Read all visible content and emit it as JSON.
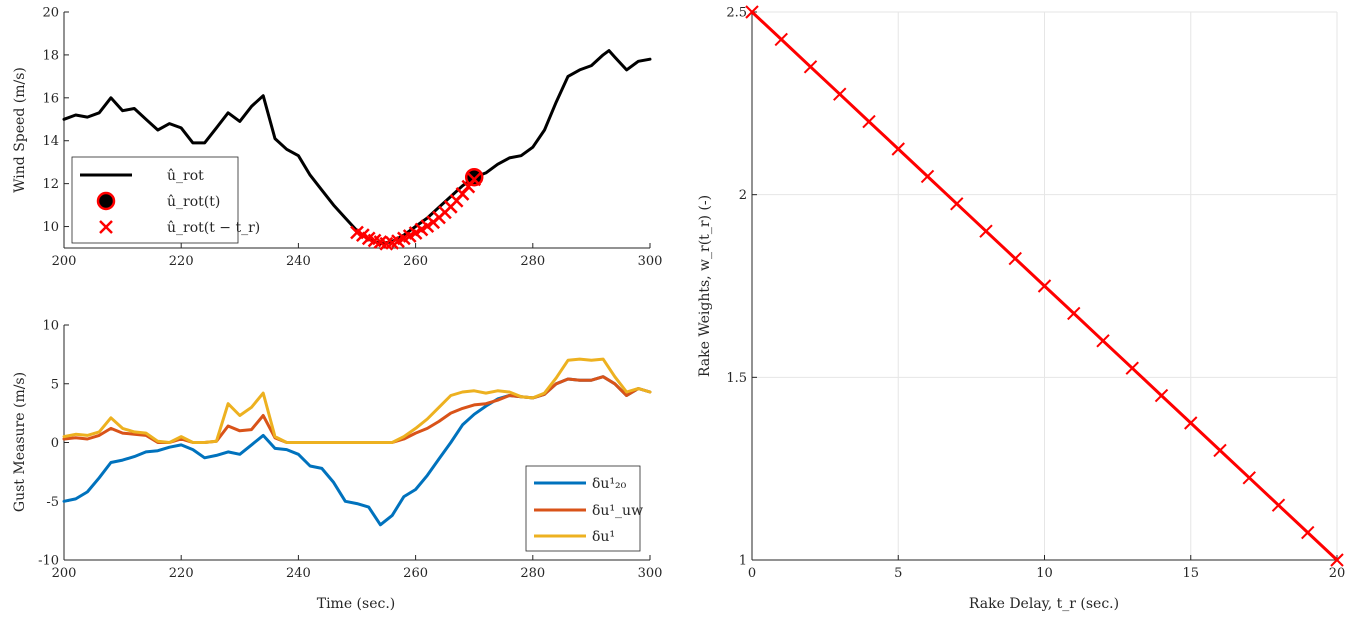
{
  "chart_data": [
    {
      "type": "line",
      "ylabel": "Wind Speed (m/s)",
      "xlim": [
        200,
        300
      ],
      "ylim": [
        9,
        20
      ],
      "xticks": [
        200,
        220,
        240,
        260,
        280,
        300
      ],
      "yticks": [
        10,
        12,
        14,
        16,
        18,
        20
      ],
      "grid": false,
      "legend_position": "lower-left",
      "series": [
        {
          "name": "û_rot",
          "kind": "line",
          "color": "#000000",
          "x": [
            200,
            202,
            204,
            206,
            208,
            210,
            212,
            214,
            216,
            218,
            220,
            222,
            224,
            226,
            228,
            230,
            232,
            234,
            236,
            238,
            240,
            242,
            244,
            246,
            248,
            250,
            252,
            254,
            256,
            258,
            260,
            262,
            264,
            266,
            268,
            270,
            272,
            274,
            276,
            278,
            280,
            282,
            284,
            286,
            288,
            290,
            292,
            293,
            294,
            296,
            298,
            300
          ],
          "y": [
            15.0,
            15.2,
            15.1,
            15.3,
            16.0,
            15.4,
            15.5,
            15.0,
            14.5,
            14.8,
            14.6,
            13.9,
            13.9,
            14.6,
            15.3,
            14.9,
            15.6,
            16.1,
            14.1,
            13.6,
            13.3,
            12.4,
            11.7,
            11.0,
            10.4,
            9.8,
            9.4,
            9.2,
            9.3,
            9.6,
            10.0,
            10.4,
            10.9,
            11.4,
            11.9,
            12.3,
            12.5,
            12.9,
            13.2,
            13.3,
            13.7,
            14.5,
            15.8,
            17.0,
            17.3,
            17.5,
            18.0,
            18.2,
            17.9,
            17.3,
            17.7,
            17.8
          ]
        },
        {
          "name": "û_rot(t)",
          "kind": "marker",
          "color": "#000000",
          "edge": "#ff0000",
          "x": [
            270
          ],
          "y": [
            12.3
          ]
        },
        {
          "name": "û_rot(t − t_r)",
          "kind": "cross",
          "color": "#ff0000",
          "x": [
            250,
            251,
            252,
            253,
            254,
            255,
            256,
            257,
            258,
            259,
            260,
            261,
            262,
            263,
            264,
            265,
            266,
            267,
            268,
            269,
            270
          ],
          "y": [
            9.72,
            9.6,
            9.45,
            9.35,
            9.28,
            9.2,
            9.24,
            9.32,
            9.45,
            9.56,
            9.7,
            9.86,
            10.02,
            10.2,
            10.42,
            10.66,
            10.92,
            11.2,
            11.52,
            11.86,
            12.2
          ]
        }
      ]
    },
    {
      "type": "line",
      "xlabel": "Time (sec.)",
      "ylabel": "Gust Measure (m/s)",
      "xlim": [
        200,
        300
      ],
      "ylim": [
        -10,
        10
      ],
      "xticks": [
        200,
        220,
        240,
        260,
        280,
        300
      ],
      "yticks": [
        -10,
        -5,
        0,
        5,
        10
      ],
      "grid": false,
      "legend_position": "lower-right",
      "series": [
        {
          "name": "δu¹₂₀",
          "color": "#0072BD",
          "x": [
            200,
            202,
            204,
            206,
            208,
            210,
            212,
            214,
            216,
            218,
            220,
            222,
            224,
            226,
            228,
            230,
            232,
            234,
            236,
            238,
            240,
            242,
            244,
            246,
            248,
            250,
            252,
            254,
            256,
            258,
            260,
            262,
            264,
            266,
            268,
            270,
            272,
            274,
            276,
            278,
            280,
            282,
            284,
            286,
            288,
            290,
            292,
            294,
            296,
            298,
            300
          ],
          "y": [
            -5.0,
            -4.8,
            -4.2,
            -3.0,
            -1.7,
            -1.5,
            -1.2,
            -0.8,
            -0.7,
            -0.4,
            -0.2,
            -0.6,
            -1.3,
            -1.1,
            -0.8,
            -1.0,
            -0.2,
            0.6,
            -0.5,
            -0.6,
            -1.0,
            -2.0,
            -2.2,
            -3.4,
            -5.0,
            -5.2,
            -5.5,
            -7.0,
            -6.2,
            -4.6,
            -4.0,
            -2.8,
            -1.4,
            0.0,
            1.5,
            2.4,
            3.1,
            3.7,
            4.0,
            3.9,
            3.8,
            4.1,
            5.0,
            5.4,
            5.3,
            5.3,
            5.6,
            5.0,
            4.0,
            4.6,
            4.3
          ]
        },
        {
          "name": "δu¹_uw",
          "color": "#D95319",
          "x": [
            200,
            202,
            204,
            206,
            208,
            210,
            212,
            214,
            216,
            218,
            220,
            222,
            224,
            226,
            228,
            230,
            232,
            234,
            236,
            238,
            240,
            242,
            244,
            246,
            248,
            250,
            252,
            254,
            256,
            258,
            260,
            262,
            264,
            266,
            268,
            270,
            272,
            274,
            276,
            278,
            280,
            282,
            284,
            286,
            288,
            290,
            292,
            294,
            296,
            298,
            300
          ],
          "y": [
            0.3,
            0.4,
            0.3,
            0.6,
            1.2,
            0.8,
            0.7,
            0.6,
            0.0,
            0.0,
            0.3,
            0.0,
            0.0,
            0.1,
            1.4,
            1.0,
            1.1,
            2.3,
            0.4,
            0.0,
            0.0,
            0.0,
            0.0,
            0.0,
            0.0,
            0.0,
            0.0,
            0.0,
            0.0,
            0.3,
            0.8,
            1.2,
            1.8,
            2.5,
            2.9,
            3.2,
            3.3,
            3.6,
            4.0,
            3.9,
            3.8,
            4.1,
            5.0,
            5.4,
            5.3,
            5.3,
            5.6,
            5.0,
            4.0,
            4.6,
            4.3
          ]
        },
        {
          "name": "δu¹",
          "color": "#EDB120",
          "x": [
            200,
            202,
            204,
            206,
            208,
            210,
            212,
            214,
            216,
            218,
            220,
            222,
            224,
            226,
            228,
            230,
            232,
            234,
            236,
            238,
            240,
            242,
            244,
            246,
            248,
            250,
            252,
            254,
            256,
            258,
            260,
            262,
            264,
            266,
            268,
            270,
            272,
            274,
            276,
            278,
            280,
            282,
            284,
            286,
            288,
            290,
            292,
            294,
            296,
            298,
            300
          ],
          "y": [
            0.5,
            0.7,
            0.6,
            0.9,
            2.1,
            1.2,
            0.9,
            0.8,
            0.1,
            0.0,
            0.5,
            0.0,
            0.0,
            0.1,
            3.3,
            2.3,
            3.0,
            4.2,
            0.5,
            0.0,
            0.0,
            0.0,
            0.0,
            0.0,
            0.0,
            0.0,
            0.0,
            0.0,
            0.0,
            0.5,
            1.2,
            2.0,
            3.0,
            4.0,
            4.3,
            4.4,
            4.2,
            4.4,
            4.3,
            3.9,
            3.8,
            4.2,
            5.5,
            7.0,
            7.1,
            7.0,
            7.1,
            5.6,
            4.3,
            4.6,
            4.3
          ]
        }
      ]
    },
    {
      "type": "line",
      "xlabel": "Rake Delay, t_r (sec.)",
      "ylabel": "Rake Weights, w_r(t_r) (-)",
      "xlim": [
        0,
        20
      ],
      "ylim": [
        1,
        2.5
      ],
      "xticks": [
        0,
        5,
        10,
        15,
        20
      ],
      "yticks": [
        1,
        1.5,
        2,
        2.5
      ],
      "grid": true,
      "series": [
        {
          "name": "",
          "color": "#ff0000",
          "markers": "x",
          "x": [
            0,
            1,
            2,
            3,
            4,
            5,
            6,
            7,
            8,
            9,
            10,
            11,
            12,
            13,
            14,
            15,
            16,
            17,
            18,
            19,
            20
          ],
          "y": [
            2.5,
            2.425,
            2.35,
            2.275,
            2.2,
            2.125,
            2.05,
            1.975,
            1.9,
            1.825,
            1.75,
            1.675,
            1.6,
            1.525,
            1.45,
            1.375,
            1.3,
            1.225,
            1.15,
            1.075,
            1.0
          ]
        }
      ]
    }
  ]
}
